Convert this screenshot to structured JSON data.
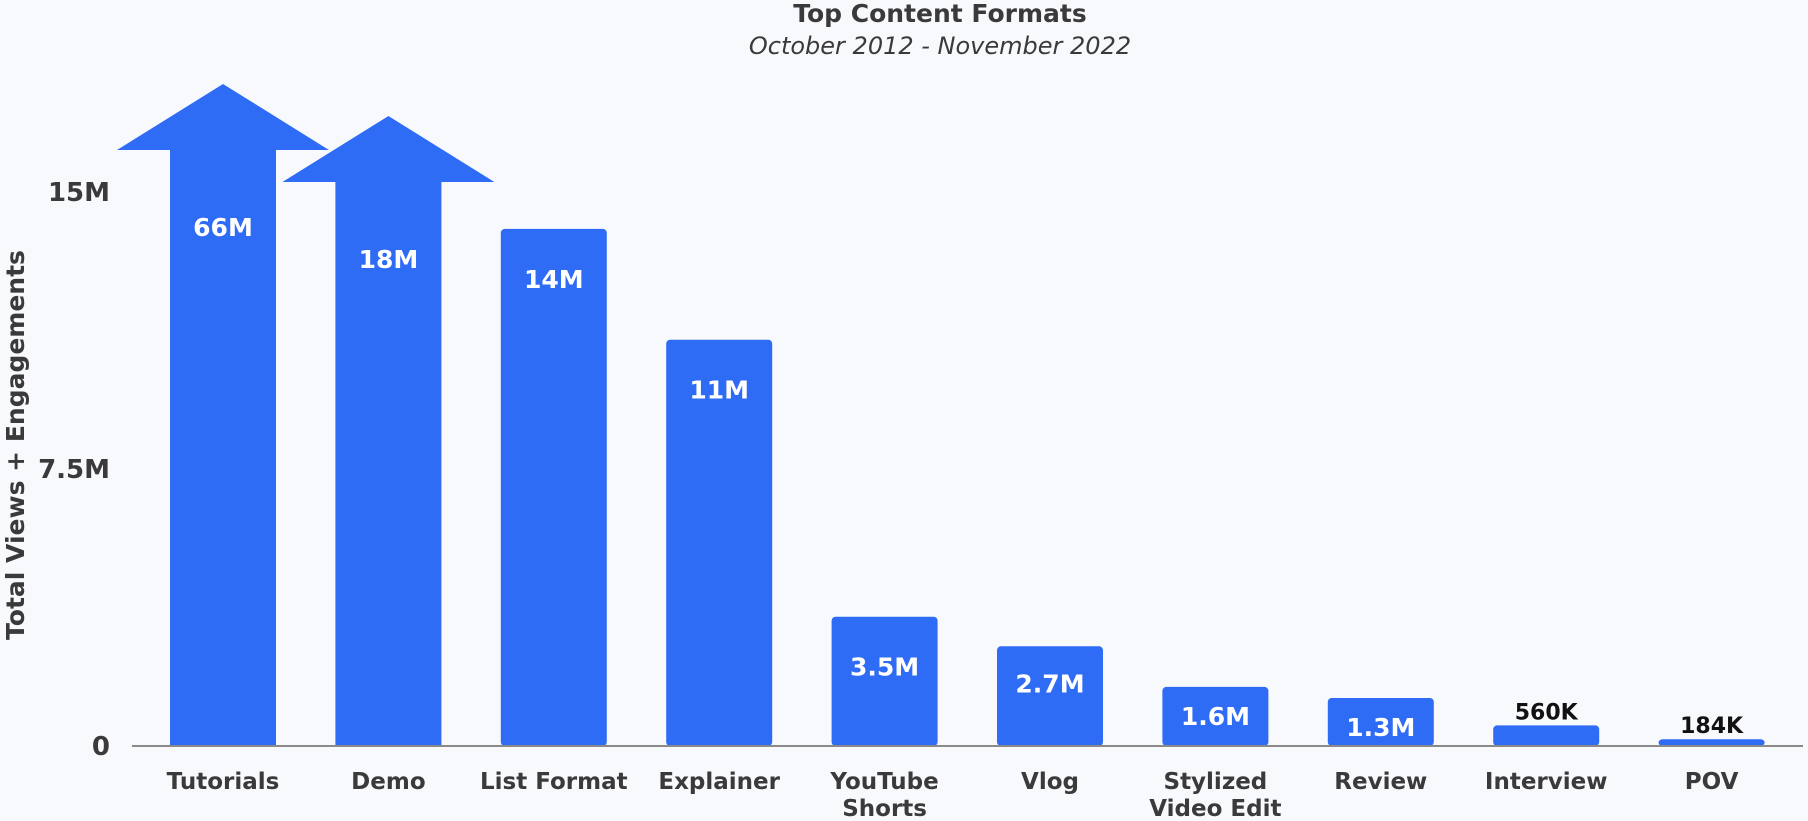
{
  "chart_data": {
    "type": "bar",
    "title": "Top Content Formats",
    "subtitle": "October 2012 - November 2022",
    "xlabel": "",
    "ylabel": "Total Views + Engagements",
    "ylim": [
      0,
      15000000
    ],
    "yticks": [
      {
        "value": 0,
        "label": "0"
      },
      {
        "value": 7500000,
        "label": "7.5M"
      },
      {
        "value": 15000000,
        "label": "15M"
      }
    ],
    "categories": [
      [
        "Tutorials"
      ],
      [
        "Demo"
      ],
      [
        "List Format"
      ],
      [
        "Explainer"
      ],
      [
        "YouTube",
        "Shorts"
      ],
      [
        "Vlog"
      ],
      [
        "Stylized",
        "Video Edit"
      ],
      [
        "Review"
      ],
      [
        "Interview"
      ],
      [
        "POV"
      ]
    ],
    "values": [
      66000000,
      18000000,
      14000000,
      11000000,
      3500000,
      2700000,
      1600000,
      1300000,
      560000,
      184000
    ],
    "data_labels": [
      "66M",
      "18M",
      "14M",
      "11M",
      "3.5M",
      "2.7M",
      "1.6M",
      "1.3M",
      "560K",
      "184K"
    ],
    "color": "#2f6cf6",
    "grid": false,
    "legend": "none",
    "overflow_note": "Bars exceeding the axis maximum are drawn as upward arrows"
  }
}
